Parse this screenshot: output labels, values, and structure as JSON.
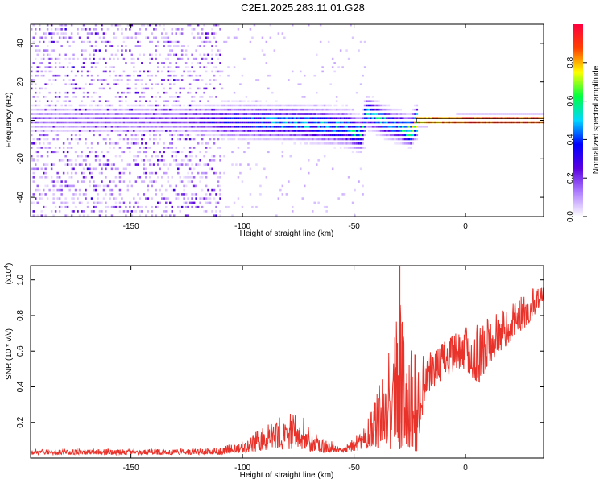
{
  "title": "C2E1.2025.283.11.01.G28",
  "chart_data": [
    {
      "type": "heatmap",
      "title": "C2E1.2025.283.11.01.G28",
      "xlabel": "Height of straight line (km)",
      "ylabel": "Frequency (Hz)",
      "xlim": [
        -195,
        35
      ],
      "ylim": [
        -50,
        50
      ],
      "xticks": [
        -150,
        -100,
        -50,
        0
      ],
      "yticks": [
        -40,
        -20,
        0,
        20,
        40
      ],
      "colorbar": {
        "label": "Normalized spectral amplitude",
        "range": [
          0,
          1
        ],
        "ticks": [
          0.0,
          0.2,
          0.4,
          0.6,
          0.8
        ],
        "tick_labels": [
          "0.0",
          "0.2",
          "0.4",
          "0.6",
          "0.8"
        ],
        "colormap": [
          "#ffffff",
          "#b080ff",
          "#5a00e0",
          "#0000ff",
          "#00d8ff",
          "#00ff40",
          "#ffff00",
          "#ff4000",
          "#ff0040"
        ]
      },
      "ridge": [
        {
          "x": -195,
          "f": 0
        },
        {
          "x": -125,
          "f": 0
        },
        {
          "x": -100,
          "f": -1
        },
        {
          "x": -75,
          "f": -2
        },
        {
          "x": -55,
          "f": -4
        },
        {
          "x": -47,
          "f": -8
        },
        {
          "x": -45,
          "f": 4
        },
        {
          "x": -35,
          "f": -2
        },
        {
          "x": -25,
          "f": -6
        },
        {
          "x": -22,
          "f": -1
        },
        {
          "x": 0,
          "f": 0
        },
        {
          "x": 35,
          "f": 0
        }
      ],
      "peak_amplitude_by_height": [
        {
          "x": -195,
          "a": 0.15
        },
        {
          "x": -125,
          "a": 0.2
        },
        {
          "x": -110,
          "a": 0.35
        },
        {
          "x": -90,
          "a": 0.45
        },
        {
          "x": -60,
          "a": 0.5
        },
        {
          "x": -45,
          "a": 0.55
        },
        {
          "x": -30,
          "a": 0.5
        },
        {
          "x": -22,
          "a": 0.85
        },
        {
          "x": 0,
          "a": 0.95
        },
        {
          "x": 35,
          "a": 0.95
        }
      ]
    },
    {
      "type": "line",
      "xlabel": "Height of straight line (km)",
      "ylabel": "SNR (10 * v/v)",
      "yscale_label": "(x10",
      "yscale_exponent": "4",
      "yscale_suffix": ")",
      "xlim": [
        -195,
        35
      ],
      "ylim": [
        0,
        1.08
      ],
      "xticks": [
        -150,
        -100,
        -50,
        0
      ],
      "yticks": [
        0.2,
        0.4,
        0.6,
        0.8,
        1.0
      ],
      "ytick_labels": [
        "0.2",
        "0.4",
        "0.6",
        "0.8",
        "1.0"
      ],
      "series": [
        {
          "name": "SNR",
          "color": "#e8322a",
          "envelope": [
            {
              "x": -195,
              "low": 0.02,
              "high": 0.05
            },
            {
              "x": -130,
              "low": 0.02,
              "high": 0.05
            },
            {
              "x": -110,
              "low": 0.02,
              "high": 0.06
            },
            {
              "x": -100,
              "low": 0.03,
              "high": 0.1
            },
            {
              "x": -90,
              "low": 0.04,
              "high": 0.18
            },
            {
              "x": -80,
              "low": 0.05,
              "high": 0.26
            },
            {
              "x": -75,
              "low": 0.05,
              "high": 0.28
            },
            {
              "x": -70,
              "low": 0.04,
              "high": 0.2
            },
            {
              "x": -65,
              "low": 0.03,
              "high": 0.12
            },
            {
              "x": -55,
              "low": 0.03,
              "high": 0.07
            },
            {
              "x": -48,
              "low": 0.04,
              "high": 0.14
            },
            {
              "x": -42,
              "low": 0.06,
              "high": 0.3
            },
            {
              "x": -36,
              "low": 0.05,
              "high": 0.55
            },
            {
              "x": -31,
              "low": 0.05,
              "high": 0.8
            },
            {
              "x": -29.5,
              "low": 0.05,
              "high": 1.08
            },
            {
              "x": -27,
              "low": 0.08,
              "high": 0.6
            },
            {
              "x": -22,
              "low": 0.02,
              "high": 0.7
            },
            {
              "x": -18,
              "low": 0.35,
              "high": 0.58
            },
            {
              "x": -10,
              "low": 0.45,
              "high": 0.66
            },
            {
              "x": 0,
              "low": 0.5,
              "high": 0.74
            },
            {
              "x": 5,
              "low": 0.4,
              "high": 0.76
            },
            {
              "x": 12,
              "low": 0.55,
              "high": 0.82
            },
            {
              "x": 20,
              "low": 0.65,
              "high": 0.88
            },
            {
              "x": 28,
              "low": 0.75,
              "high": 0.95
            },
            {
              "x": 35,
              "low": 0.88,
              "high": 0.96
            }
          ]
        }
      ]
    }
  ]
}
